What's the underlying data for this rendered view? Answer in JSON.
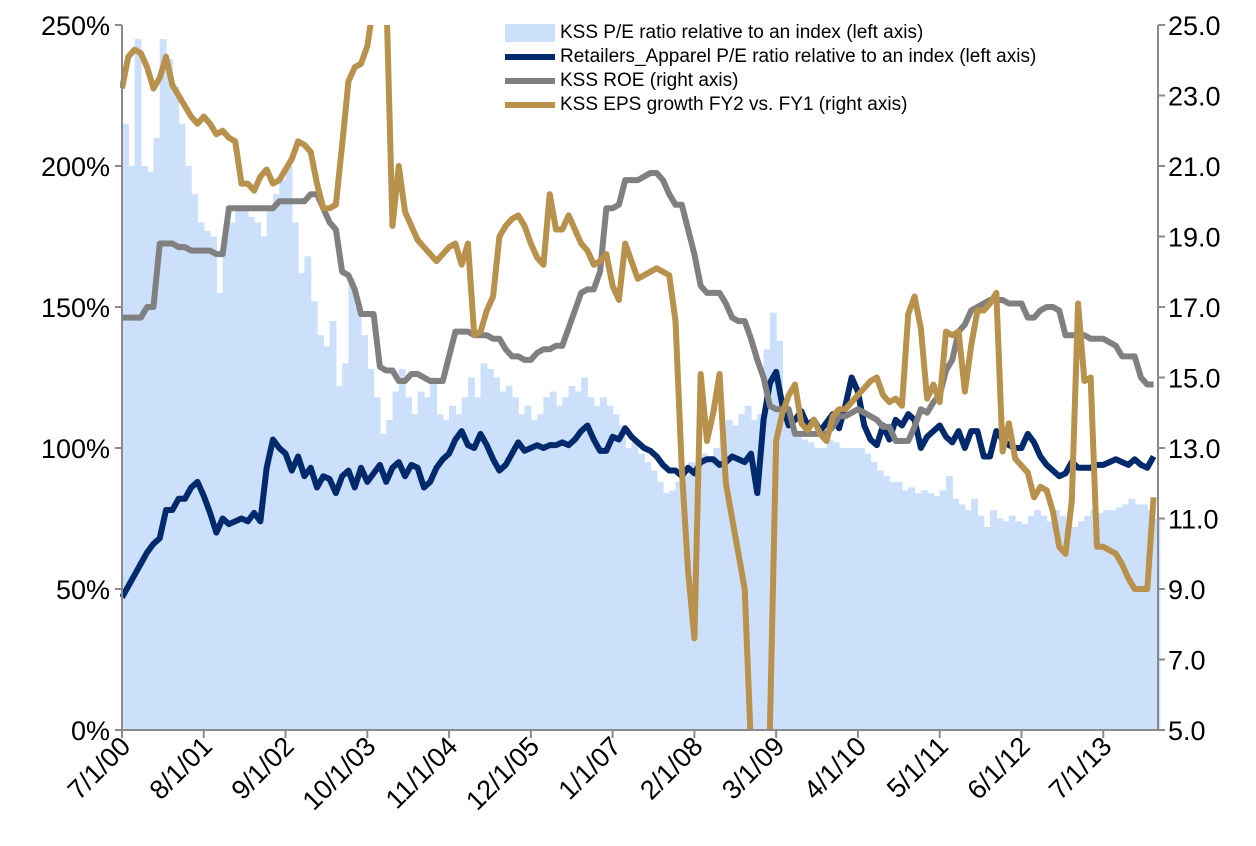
{
  "chart_data": {
    "type": "combo",
    "categories": [
      "7/1/00",
      null,
      null,
      null,
      null,
      null,
      null,
      null,
      null,
      null,
      null,
      null,
      null,
      "8/1/01",
      null,
      null,
      null,
      null,
      null,
      null,
      null,
      null,
      null,
      null,
      null,
      null,
      "9/1/02",
      null,
      null,
      null,
      null,
      null,
      null,
      null,
      null,
      null,
      null,
      null,
      null,
      "10/1/03",
      null,
      null,
      null,
      null,
      null,
      null,
      null,
      null,
      null,
      null,
      null,
      null,
      "11/1/04",
      null,
      null,
      null,
      null,
      null,
      null,
      null,
      null,
      null,
      null,
      null,
      null,
      "12/1/05",
      null,
      null,
      null,
      null,
      null,
      null,
      null,
      null,
      null,
      null,
      null,
      null,
      "1/1/07",
      null,
      null,
      null,
      null,
      null,
      null,
      null,
      null,
      null,
      null,
      null,
      null,
      "2/1/08",
      null,
      null,
      null,
      null,
      null,
      null,
      null,
      null,
      null,
      null,
      null,
      null,
      "3/1/09",
      null,
      null,
      null,
      null,
      null,
      null,
      null,
      null,
      null,
      null,
      null,
      null,
      "4/1/10",
      null,
      null,
      null,
      null,
      null,
      null,
      null,
      null,
      null,
      null,
      null,
      null,
      "5/1/11",
      null,
      null,
      null,
      null,
      null,
      null,
      null,
      null,
      null,
      null,
      null,
      null,
      "6/1/12",
      null,
      null,
      null,
      null,
      null,
      null,
      null,
      null,
      null,
      null,
      null,
      null,
      "7/1/13",
      null,
      null,
      null,
      null,
      null,
      null,
      null,
      null
    ],
    "series": [
      {
        "name": "KSS P/E ratio relative to an index (left axis)",
        "type": "bar",
        "color": "#cce0fb",
        "values": [
          215,
          200,
          245,
          200,
          198,
          210,
          245,
          238,
          228,
          215,
          200,
          190,
          180,
          177,
          175,
          155,
          175,
          180,
          185,
          186,
          182,
          180,
          175,
          185,
          190,
          195,
          200,
          180,
          162,
          168,
          152,
          140,
          136,
          145,
          122,
          130,
          160,
          150,
          140,
          128,
          118,
          105,
          110,
          120,
          128,
          118,
          112,
          120,
          118,
          125,
          112,
          110,
          115,
          112,
          118,
          125,
          118,
          130,
          128,
          125,
          120,
          122,
          118,
          112,
          115,
          110,
          112,
          118,
          120,
          115,
          118,
          122,
          120,
          125,
          118,
          115,
          118,
          115,
          112,
          108,
          100,
          102,
          98,
          95,
          92,
          88,
          84,
          85,
          88,
          90,
          95,
          92,
          98,
          95,
          100,
          105,
          110,
          108,
          112,
          115,
          110,
          112,
          135,
          148,
          138,
          118,
          108,
          105,
          103,
          102,
          100,
          100,
          103,
          102,
          100,
          100,
          100,
          100,
          98,
          95,
          92,
          90,
          88,
          88,
          85,
          86,
          84,
          85,
          84,
          83,
          85,
          90,
          82,
          80,
          78,
          82,
          76,
          72,
          78,
          75,
          74,
          76,
          74,
          73,
          76,
          78,
          76,
          74,
          78,
          76,
          73,
          72,
          74,
          76,
          78,
          77,
          78,
          78,
          79,
          80,
          82,
          80,
          80,
          78,
          75
        ]
      },
      {
        "name": "Retailers_Apparel P/E ratio relative to an index (left axis)",
        "type": "line",
        "color": "#002a6c",
        "values": [
          47,
          51,
          55,
          59,
          63,
          66,
          68,
          78,
          78,
          82,
          82,
          86,
          88,
          83,
          77,
          70,
          75,
          73,
          74,
          75,
          74,
          77,
          74,
          93,
          103,
          100,
          98,
          92,
          97,
          90,
          93,
          86,
          90,
          89,
          84,
          90,
          92,
          86,
          93,
          88,
          91,
          94,
          88,
          93,
          95,
          90,
          94,
          93,
          86,
          88,
          93,
          96,
          98,
          103,
          106,
          101,
          100,
          105,
          101,
          96,
          92,
          94,
          98,
          102,
          99,
          100,
          101,
          100,
          101,
          101,
          102,
          101,
          103,
          106,
          108,
          103,
          99,
          99,
          104,
          103,
          107,
          104,
          102,
          100,
          99,
          97,
          94,
          92,
          92,
          90,
          93,
          91,
          95,
          96,
          96,
          94,
          95,
          97,
          96,
          95,
          98,
          84,
          110,
          123,
          127,
          115,
          108,
          110,
          113,
          108,
          110,
          106,
          109,
          112,
          107,
          115,
          125,
          120,
          108,
          103,
          101,
          108,
          103,
          110,
          108,
          112,
          110,
          100,
          104,
          106,
          108,
          104,
          102,
          106,
          100,
          106,
          106,
          97,
          97,
          106,
          103,
          101,
          100,
          100,
          105,
          102,
          97,
          94,
          92,
          90,
          91,
          95,
          93,
          93,
          93,
          94,
          94,
          95,
          96,
          95,
          94,
          96,
          94,
          93,
          97
        ]
      },
      {
        "name": "KSS ROE (right axis)",
        "type": "line",
        "axis": "y2",
        "color": "#808080",
        "values": [
          16.7,
          16.7,
          16.7,
          16.7,
          17.0,
          17.0,
          18.8,
          18.8,
          18.8,
          18.7,
          18.7,
          18.6,
          18.6,
          18.6,
          18.6,
          18.5,
          18.5,
          19.8,
          19.8,
          19.8,
          19.8,
          19.8,
          19.8,
          19.8,
          19.8,
          20.0,
          20.0,
          20.0,
          20.0,
          20.0,
          20.2,
          20.2,
          19.8,
          19.4,
          19.2,
          18.0,
          17.9,
          17.5,
          16.8,
          16.8,
          16.8,
          15.3,
          15.2,
          15.2,
          14.9,
          14.9,
          15.1,
          15.1,
          15.0,
          14.9,
          14.9,
          14.9,
          15.6,
          16.3,
          16.3,
          16.3,
          16.2,
          16.2,
          16.2,
          16.1,
          16.1,
          15.8,
          15.6,
          15.6,
          15.5,
          15.5,
          15.7,
          15.8,
          15.8,
          15.9,
          15.9,
          16.4,
          16.9,
          17.4,
          17.5,
          17.5,
          18.0,
          19.8,
          19.8,
          19.9,
          20.6,
          20.6,
          20.6,
          20.7,
          20.8,
          20.8,
          20.6,
          20.2,
          19.9,
          19.9,
          19.2,
          18.5,
          17.6,
          17.4,
          17.4,
          17.4,
          17.1,
          16.7,
          16.6,
          16.6,
          16.1,
          15.5,
          15.0,
          14.2,
          14.1,
          14.1,
          14.1,
          13.4,
          13.4,
          13.4,
          13.4,
          13.4,
          13.4,
          13.6,
          13.9,
          13.9,
          14.0,
          14.1,
          14.0,
          13.9,
          13.8,
          13.6,
          13.6,
          13.2,
          13.2,
          13.2,
          13.6,
          14.1,
          14.0,
          14.3,
          14.5,
          15.2,
          15.5,
          16.3,
          16.5,
          16.9,
          17.0,
          17.1,
          17.2,
          17.2,
          17.2,
          17.1,
          17.1,
          17.1,
          16.7,
          16.7,
          16.9,
          17.0,
          17.0,
          16.9,
          16.2,
          16.2,
          16.2,
          16.2,
          16.1,
          16.1,
          16.1,
          16.0,
          15.9,
          15.6,
          15.6,
          15.6,
          15.0,
          14.8,
          14.8
        ]
      },
      {
        "name": "KSS EPS growth FY2 vs. FY1 (right axis)",
        "type": "line",
        "axis": "y2",
        "color": "#b8914c",
        "values": [
          23.2,
          24.1,
          24.3,
          24.2,
          23.8,
          23.2,
          23.5,
          24.1,
          23.3,
          23.0,
          22.7,
          22.4,
          22.2,
          22.4,
          22.2,
          21.9,
          22.0,
          21.8,
          21.7,
          20.5,
          20.5,
          20.3,
          20.7,
          20.9,
          20.5,
          20.6,
          20.9,
          21.2,
          21.7,
          21.6,
          21.4,
          20.5,
          19.8,
          19.8,
          19.9,
          21.6,
          23.4,
          23.8,
          23.9,
          24.4,
          25.6,
          27.5,
          26.0,
          19.3,
          21.0,
          19.7,
          19.3,
          18.9,
          18.7,
          18.5,
          18.3,
          18.5,
          18.7,
          18.8,
          18.2,
          18.8,
          16.2,
          16.3,
          16.9,
          17.3,
          19.0,
          19.3,
          19.5,
          19.6,
          19.3,
          18.8,
          18.4,
          18.2,
          20.2,
          19.2,
          19.2,
          19.6,
          19.2,
          18.8,
          18.6,
          18.2,
          18.3,
          18.5,
          17.6,
          17.2,
          18.8,
          18.3,
          17.8,
          17.9,
          18.0,
          18.1,
          18.0,
          17.9,
          16.6,
          12.4,
          9.5,
          7.6,
          15.1,
          13.2,
          14.0,
          15.1,
          12.0,
          11.0,
          10.0,
          9.0,
          4.5,
          3.0,
          3.5,
          5.0,
          13.2,
          14.0,
          14.5,
          14.8,
          13.7,
          13.5,
          13.8,
          13.4,
          13.2,
          13.9,
          14.1,
          14.1,
          14.3,
          14.5,
          14.7,
          14.9,
          15.0,
          14.5,
          14.3,
          14.4,
          14.2,
          16.8,
          17.3,
          16.4,
          14.4,
          14.8,
          14.3,
          16.3,
          16.2,
          16.3,
          14.6,
          15.9,
          16.9,
          16.9,
          17.1,
          17.4,
          12.9,
          13.7,
          12.7,
          12.5,
          12.3,
          11.6,
          11.9,
          11.8,
          11.2,
          10.2,
          10.0,
          11.5,
          17.1,
          14.9,
          15.0,
          10.2,
          10.2,
          10.1,
          10.0,
          9.7,
          9.3,
          9.0,
          9.0,
          9.0,
          11.6
        ]
      }
    ],
    "ylim": [
      0,
      250
    ],
    "yticks": [
      {
        "value": 0,
        "label": "0%"
      },
      {
        "value": 50,
        "label": "50%"
      },
      {
        "value": 100,
        "label": "100%"
      },
      {
        "value": 150,
        "label": "150%"
      },
      {
        "value": 200,
        "label": "200%"
      },
      {
        "value": 250,
        "label": "250%"
      }
    ],
    "y2lim": [
      5,
      25
    ],
    "y2ticks": [
      {
        "value": 5,
        "label": "5.0"
      },
      {
        "value": 7,
        "label": "7.0"
      },
      {
        "value": 9,
        "label": "9.0"
      },
      {
        "value": 11,
        "label": "11.0"
      },
      {
        "value": 13,
        "label": "13.0"
      },
      {
        "value": 15,
        "label": "15.0"
      },
      {
        "value": 17,
        "label": "17.0"
      },
      {
        "value": 19,
        "label": "19.0"
      },
      {
        "value": 21,
        "label": "21.0"
      },
      {
        "value": 23,
        "label": "23.0"
      },
      {
        "value": 25,
        "label": "25.0"
      }
    ],
    "legend": "top"
  }
}
